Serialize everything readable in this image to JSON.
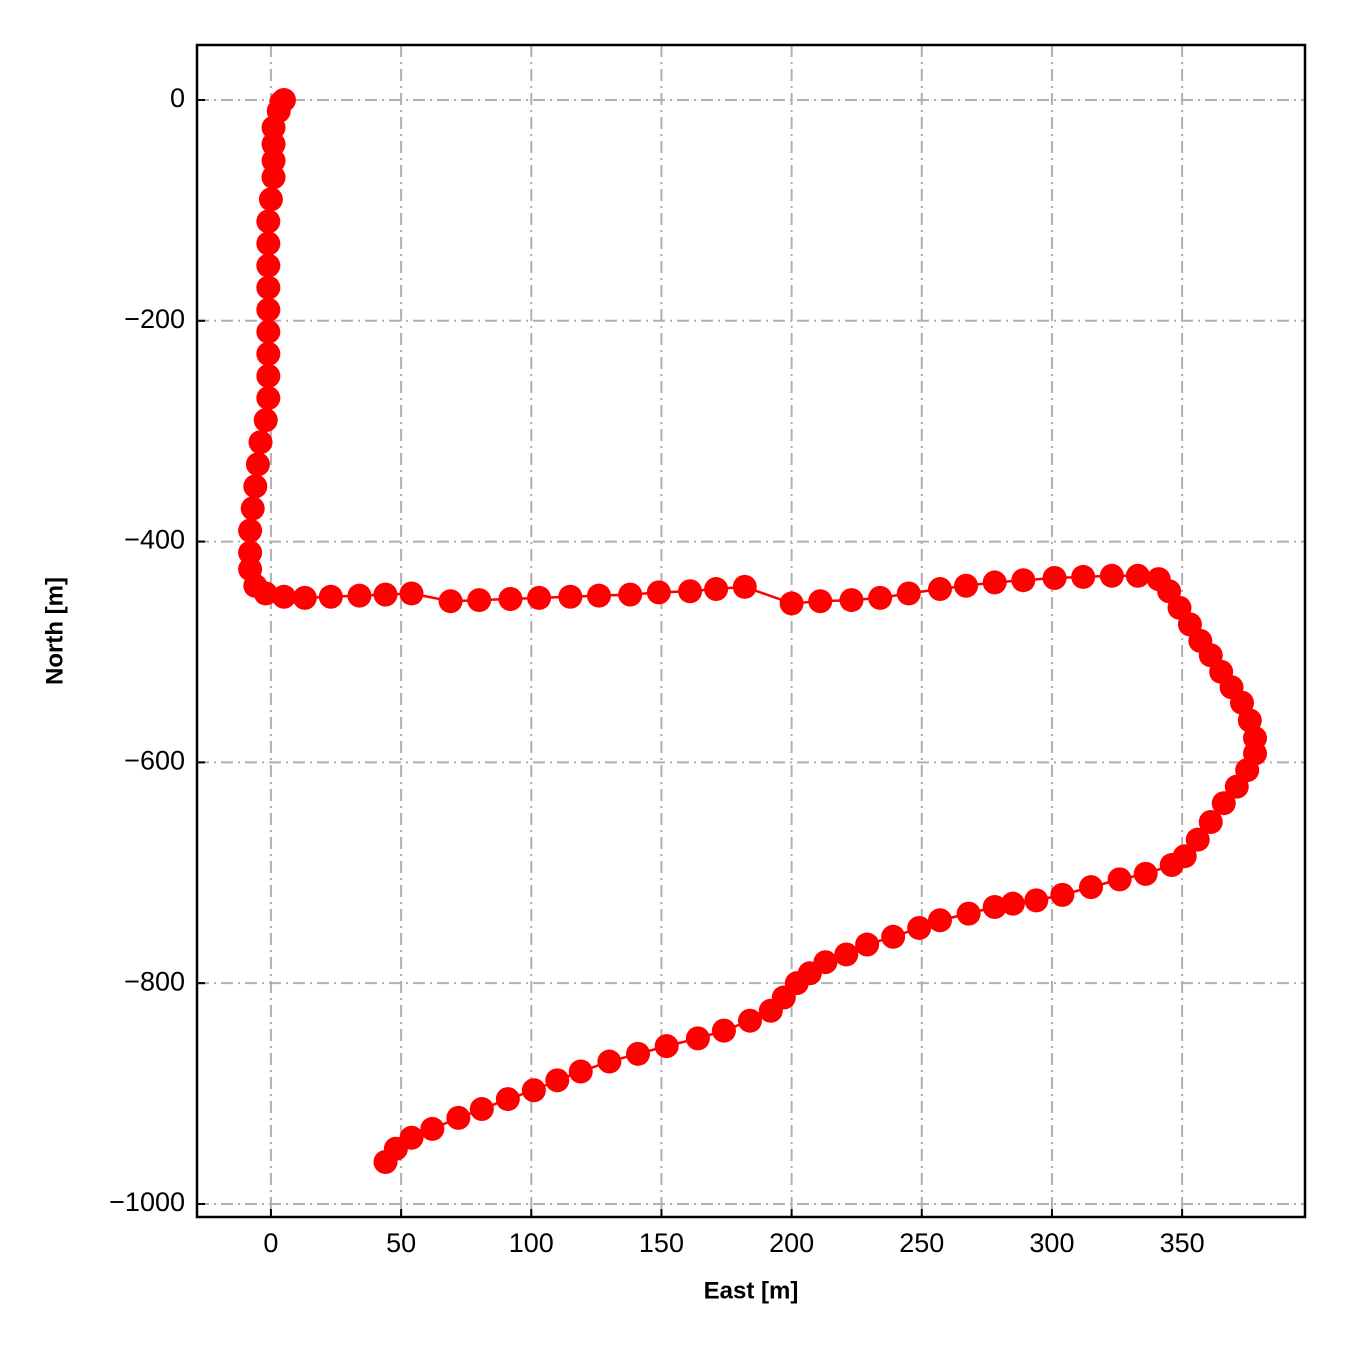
{
  "chart_data": {
    "type": "line",
    "x_label": "East [m]",
    "y_label": "North [m]",
    "x": [
      5,
      4,
      3,
      1,
      1,
      1,
      1,
      0,
      -1,
      -1,
      -1,
      -1,
      -1,
      -1,
      -1,
      -1,
      -1,
      -2,
      -4,
      -5,
      -6,
      -7,
      -8,
      -8,
      -8,
      -6,
      -2,
      5,
      13,
      23,
      34,
      44,
      54,
      69,
      80,
      92,
      103,
      115,
      126,
      138,
      149,
      161,
      171,
      182,
      200,
      211,
      223,
      234,
      245,
      257,
      267,
      278,
      289,
      301,
      312,
      323,
      333,
      341,
      345,
      349,
      353,
      357,
      361,
      365,
      369,
      373,
      376,
      378,
      378,
      375,
      371,
      366,
      361,
      356,
      351,
      346,
      336,
      326,
      315,
      304,
      294,
      285,
      278,
      268,
      257,
      249,
      239,
      229,
      221,
      213,
      207,
      202,
      197,
      192,
      184,
      174,
      164,
      152,
      141,
      130,
      119,
      110,
      101,
      91,
      81,
      72,
      62,
      54,
      48,
      44
    ],
    "values": [
      0,
      -2,
      -10,
      -25,
      -40,
      -55,
      -70,
      -90,
      -110,
      -130,
      -150,
      -170,
      -190,
      -210,
      -230,
      -250,
      -270,
      -290,
      -310,
      -330,
      -350,
      -370,
      -390,
      -410,
      -425,
      -440,
      -447,
      -450,
      -451,
      -450,
      -449,
      -448,
      -447,
      -454,
      -453,
      -452,
      -451,
      -450,
      -449,
      -448,
      -446,
      -445,
      -443,
      -441,
      -456,
      -454,
      -453,
      -451,
      -447,
      -443,
      -440,
      -437,
      -435,
      -433,
      -432,
      -431,
      -431,
      -434,
      -445,
      -460,
      -475,
      -490,
      -503,
      -518,
      -532,
      -546,
      -562,
      -578,
      -592,
      -607,
      -622,
      -637,
      -654,
      -670,
      -685,
      -693,
      -701,
      -706,
      -713,
      -720,
      -725,
      -728,
      -731,
      -737,
      -743,
      -750,
      -758,
      -765,
      -774,
      -781,
      -791,
      -800,
      -813,
      -825,
      -834,
      -843,
      -850,
      -857,
      -864,
      -871,
      -880,
      -888,
      -897,
      -905,
      -914,
      -922,
      -932,
      -940,
      -950,
      -962
    ],
    "color": "#ff0000",
    "xlim": [
      -28.4,
      397.2
    ],
    "ylim": [
      -1011.8,
      49.8
    ],
    "xticks": [
      0,
      50,
      100,
      150,
      200,
      250,
      300,
      350
    ],
    "yticks": [
      {
        "value": -1000,
        "label": "−1000"
      },
      {
        "value": -800,
        "label": "−800"
      },
      {
        "value": -600,
        "label": "−600"
      },
      {
        "value": -400,
        "label": "−400"
      },
      {
        "value": -200,
        "label": "−200"
      },
      0
    ],
    "grid": true
  }
}
